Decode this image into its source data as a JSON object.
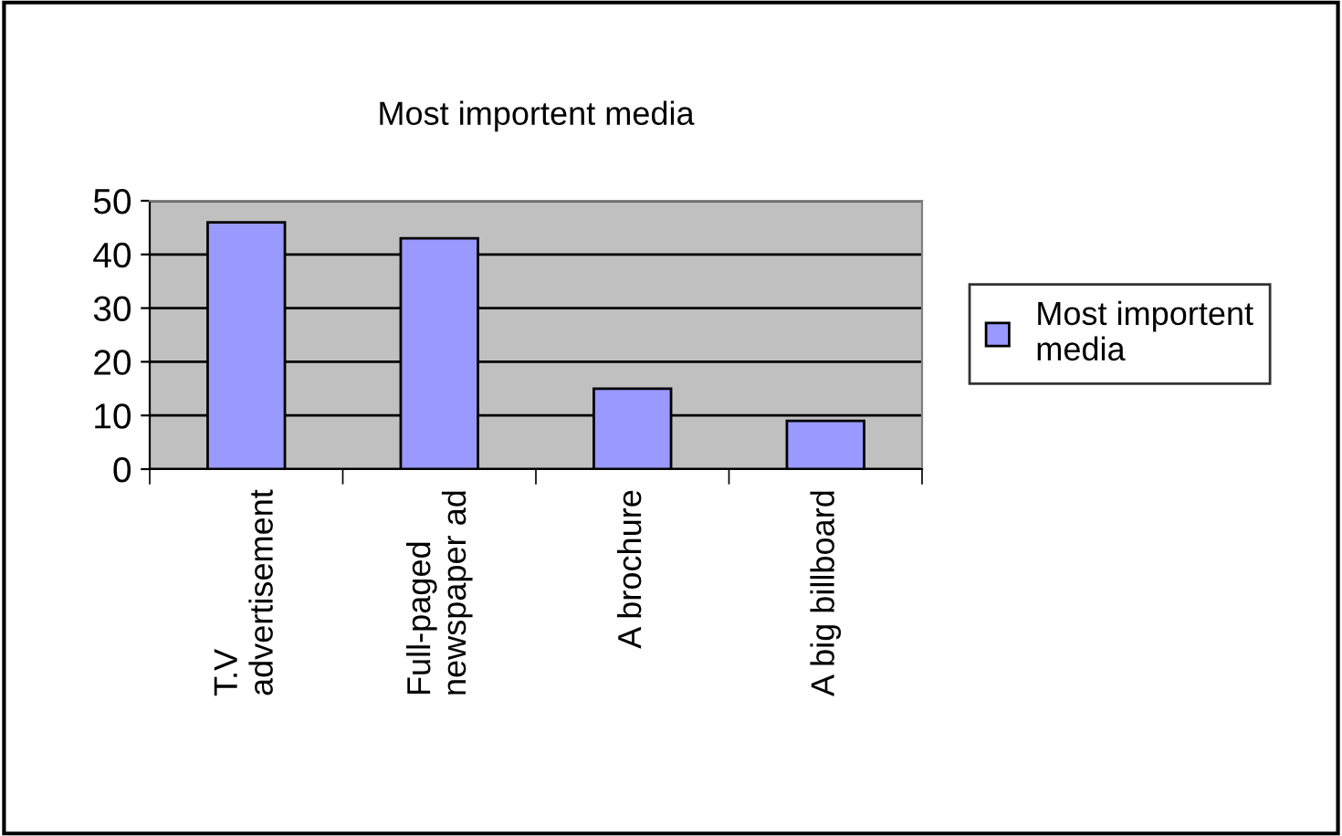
{
  "chart_data": {
    "type": "bar",
    "title": "Most importent media",
    "categories": [
      "T.V\nadvertisement",
      "Full-paged\nnewspaper ad",
      "A brochure",
      "A big billboard"
    ],
    "series": [
      {
        "name": "Most importent\nmedia",
        "color": "#9999ff",
        "values": [
          46,
          43,
          15,
          9
        ]
      }
    ],
    "ylim": [
      0,
      50
    ],
    "yticks": [
      0,
      10,
      20,
      30,
      40,
      50
    ],
    "grid": "y",
    "legend": "right"
  }
}
